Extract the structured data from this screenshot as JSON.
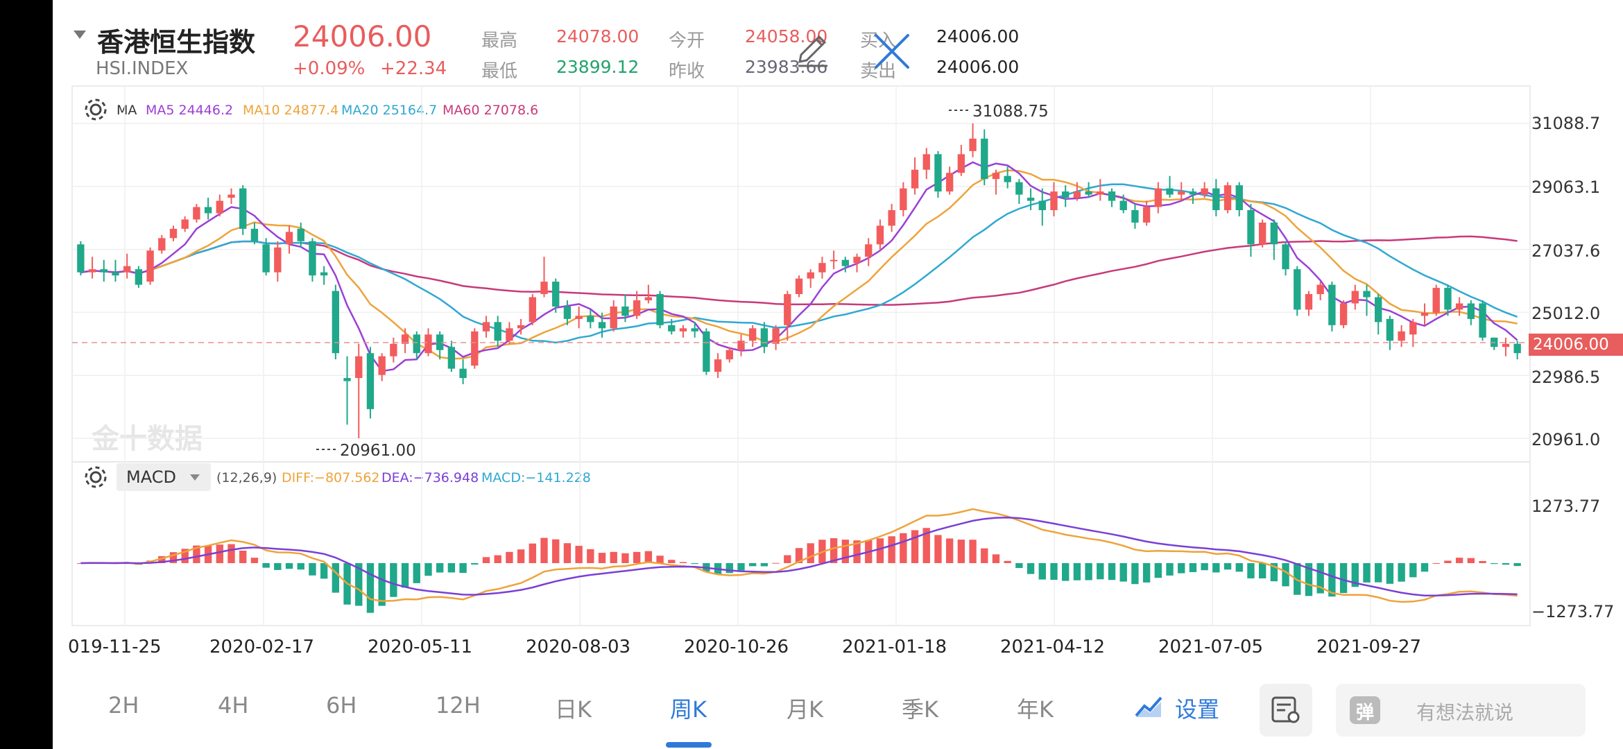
{
  "header": {
    "name": "香港恒生指数",
    "code": "HSI.INDEX",
    "price": "24006.00",
    "change_pct": "+0.09%",
    "change_abs": "+22.34",
    "quotes": [
      {
        "label": "最高",
        "value": "24078.00",
        "color": "#e85d5d"
      },
      {
        "label": "最低",
        "value": "23899.12",
        "color": "#23a26d"
      },
      {
        "label": "今开",
        "value": "24058.00",
        "color": "#e85d5d"
      },
      {
        "label": "昨收",
        "value": "23983.66",
        "color": "#556680"
      },
      {
        "label": "买入",
        "value": "24006.00",
        "color": "#222222"
      },
      {
        "label": "卖出",
        "value": "24006.00",
        "color": "#222222"
      }
    ],
    "edit_icon": "pencil-icon",
    "close_icon": "close-icon"
  },
  "main_indicator": {
    "name": "MA",
    "ma5": "MA5 24446.2",
    "ma10": "MA10 24877.4",
    "ma20": "MA20 25164.7",
    "ma60": "MA60 27078.6",
    "colors": {
      "ma5": "#9b3fd6",
      "ma10": "#eea33a",
      "ma20": "#2fa8d2",
      "ma60": "#c8397a"
    }
  },
  "sub_indicator": {
    "name": "MACD",
    "params": "(12,26,9)",
    "diff": "DIFF:−807.562",
    "dea": "DEA:−736.948",
    "macd": "MACD:−141.228",
    "colors": {
      "diff": "#eea33a",
      "dea": "#7a3fd6",
      "macd": "#2fa8d2"
    }
  },
  "watermark": "金十数据",
  "y_axis": [
    "31088.7",
    "29063.1",
    "27037.6",
    "25012.0",
    "22986.5",
    "20961.0"
  ],
  "price_tag": "24006.00",
  "macd_axis": [
    "1273.77",
    "−1273.77"
  ],
  "annotations": {
    "high": "31088.75",
    "low": "20961.00"
  },
  "x_axis": [
    "019-11-25",
    "2020-02-17",
    "2020-05-11",
    "2020-08-03",
    "2020-10-26",
    "2021-01-18",
    "2021-04-12",
    "2021-07-05",
    "2021-09-27"
  ],
  "tabs": [
    "2H",
    "4H",
    "6H",
    "12H",
    "日K",
    "周K",
    "月K",
    "季K",
    "年K"
  ],
  "active_tab": "周K",
  "settings_label": "设置",
  "search_placeholder": "有想法就说",
  "chart_data": {
    "type": "candlestick",
    "period": "weekly",
    "x_ticks": [
      "019-11-25",
      "2020-02-17",
      "2020-05-11",
      "2020-08-03",
      "2020-10-26",
      "2021-01-18",
      "2021-04-12",
      "2021-07-05",
      "2021-09-27"
    ],
    "ylim": [
      20961.0,
      31088.7
    ],
    "y_ticks": [
      31088.7,
      29063.1,
      27037.6,
      25012.0,
      22986.5,
      20961.0
    ],
    "candles": [
      [
        27200,
        26300,
        27300,
        26200
      ],
      [
        26300,
        26400,
        26800,
        26100
      ],
      [
        26400,
        26300,
        26700,
        26000
      ],
      [
        26300,
        26200,
        26700,
        26000
      ],
      [
        26300,
        26500,
        26900,
        26100
      ],
      [
        26400,
        25900,
        26500,
        25800
      ],
      [
        26000,
        27000,
        27100,
        25900
      ],
      [
        27000,
        27400,
        27500,
        26900
      ],
      [
        27400,
        27700,
        27800,
        27300
      ],
      [
        27700,
        28000,
        28100,
        27600
      ],
      [
        28000,
        28400,
        28500,
        27900
      ],
      [
        28400,
        28200,
        28700,
        28000
      ],
      [
        28200,
        28600,
        28800,
        28100
      ],
      [
        28700,
        28800,
        29000,
        28500
      ],
      [
        29000,
        27700,
        29100,
        27500
      ],
      [
        27700,
        27300,
        27900,
        27200
      ],
      [
        27200,
        26300,
        27400,
        26200
      ],
      [
        26300,
        27100,
        27300,
        26000
      ],
      [
        27200,
        27600,
        27800,
        26900
      ],
      [
        27700,
        27300,
        27900,
        27100
      ],
      [
        27300,
        26200,
        27400,
        26000
      ],
      [
        26300,
        26200,
        26500,
        25900
      ],
      [
        25700,
        23700,
        25900,
        23500
      ],
      [
        22900,
        22800,
        23600,
        21400
      ],
      [
        22900,
        23600,
        24000,
        20961
      ],
      [
        23700,
        21900,
        23900,
        21600
      ],
      [
        23000,
        23600,
        23700,
        22800
      ],
      [
        23600,
        24000,
        24200,
        23400
      ],
      [
        24000,
        24300,
        24500,
        23700
      ],
      [
        24300,
        23700,
        24400,
        23500
      ],
      [
        23700,
        24300,
        24500,
        23600
      ],
      [
        24300,
        23800,
        24400,
        23500
      ],
      [
        23900,
        23200,
        24100,
        23100
      ],
      [
        23200,
        22900,
        23500,
        22700
      ],
      [
        23300,
        24400,
        24500,
        23200
      ],
      [
        24400,
        24700,
        24900,
        24200
      ],
      [
        24700,
        24100,
        24900,
        23900
      ],
      [
        24100,
        24500,
        24700,
        24000
      ],
      [
        24500,
        24600,
        24800,
        24300
      ],
      [
        24700,
        25500,
        25600,
        24600
      ],
      [
        25600,
        26000,
        26800,
        25500
      ],
      [
        26000,
        25200,
        26100,
        25000
      ],
      [
        25200,
        24800,
        25400,
        24600
      ],
      [
        24800,
        24900,
        25200,
        24500
      ],
      [
        24900,
        24700,
        25100,
        24500
      ],
      [
        24700,
        24500,
        25000,
        24200
      ],
      [
        24500,
        25200,
        25400,
        24400
      ],
      [
        25200,
        24900,
        25600,
        24700
      ],
      [
        24900,
        25400,
        25700,
        24800
      ],
      [
        25400,
        25500,
        25900,
        25300
      ],
      [
        25600,
        24600,
        25700,
        24500
      ],
      [
        24600,
        24400,
        24800,
        24300
      ],
      [
        24400,
        24500,
        24600,
        24200
      ],
      [
        24500,
        24400,
        24700,
        24200
      ],
      [
        24400,
        23100,
        24500,
        23000
      ],
      [
        23100,
        23500,
        23700,
        22900
      ],
      [
        23500,
        23800,
        23900,
        23400
      ],
      [
        23800,
        24100,
        24300,
        23600
      ],
      [
        24100,
        24500,
        24600,
        23900
      ],
      [
        24500,
        23900,
        24700,
        23700
      ],
      [
        24000,
        24500,
        24600,
        23800
      ],
      [
        24600,
        25600,
        25700,
        24100
      ],
      [
        25600,
        26100,
        26200,
        25500
      ],
      [
        26100,
        26300,
        26400,
        25800
      ],
      [
        26300,
        26600,
        26800,
        26100
      ],
      [
        26700,
        26700,
        27000,
        26400
      ],
      [
        26700,
        26500,
        26800,
        26300
      ],
      [
        26600,
        26800,
        26900,
        26300
      ],
      [
        26800,
        27200,
        27400,
        26500
      ],
      [
        27200,
        27800,
        28000,
        27000
      ],
      [
        27800,
        28300,
        28500,
        27600
      ],
      [
        28300,
        29000,
        29200,
        28100
      ],
      [
        29000,
        29600,
        30000,
        28800
      ],
      [
        29600,
        30100,
        30300,
        29300
      ],
      [
        30100,
        28900,
        30200,
        28700
      ],
      [
        28900,
        29500,
        29700,
        28800
      ],
      [
        29500,
        30100,
        30400,
        29400
      ],
      [
        30200,
        30600,
        31088.75,
        30000
      ],
      [
        30600,
        29300,
        30900,
        29100
      ],
      [
        29300,
        29500,
        29600,
        28800
      ],
      [
        29400,
        29200,
        29700,
        29000
      ],
      [
        29200,
        28800,
        29300,
        28500
      ],
      [
        28700,
        28600,
        29000,
        28300
      ],
      [
        28600,
        28300,
        29000,
        27800
      ],
      [
        28300,
        28900,
        29200,
        28100
      ],
      [
        28900,
        28700,
        29100,
        28400
      ],
      [
        28700,
        28900,
        29200,
        28600
      ],
      [
        28900,
        28800,
        29200,
        28700
      ],
      [
        28800,
        28900,
        29300,
        28600
      ],
      [
        28900,
        28600,
        29000,
        28400
      ],
      [
        28600,
        28300,
        28800,
        28200
      ],
      [
        28300,
        27900,
        28500,
        27700
      ],
      [
        27900,
        28400,
        28600,
        27800
      ],
      [
        28400,
        29000,
        29200,
        28200
      ],
      [
        29000,
        28800,
        29400,
        28700
      ],
      [
        28800,
        28900,
        29200,
        28600
      ],
      [
        28900,
        28800,
        29000,
        28500
      ],
      [
        28800,
        29000,
        29200,
        28700
      ],
      [
        29000,
        28300,
        29300,
        28100
      ],
      [
        28300,
        29100,
        29200,
        28200
      ],
      [
        29100,
        28300,
        29200,
        28100
      ],
      [
        28300,
        27200,
        28500,
        26800
      ],
      [
        27200,
        27900,
        28000,
        27100
      ],
      [
        27900,
        27200,
        28000,
        26700
      ],
      [
        27200,
        26400,
        27300,
        26200
      ],
      [
        26400,
        25100,
        26500,
        24900
      ],
      [
        25100,
        25600,
        25700,
        24900
      ],
      [
        25600,
        25900,
        26000,
        25400
      ],
      [
        25900,
        24600,
        26000,
        24400
      ],
      [
        24600,
        25300,
        25400,
        24500
      ],
      [
        25300,
        25700,
        25900,
        25100
      ],
      [
        25700,
        25500,
        25900,
        24900
      ],
      [
        25500,
        24700,
        25600,
        24300
      ],
      [
        24800,
        24100,
        24900,
        23800
      ],
      [
        24100,
        24400,
        24600,
        23900
      ],
      [
        24300,
        24700,
        24800,
        23900
      ],
      [
        24900,
        25000,
        25300,
        24600
      ],
      [
        25000,
        25800,
        25900,
        24900
      ],
      [
        25800,
        25100,
        25900,
        24900
      ],
      [
        25100,
        25300,
        25500,
        24900
      ],
      [
        25300,
        24800,
        25400,
        24600
      ],
      [
        25300,
        24200,
        25400,
        24100
      ],
      [
        24200,
        23900,
        24200,
        23800
      ],
      [
        23900,
        24000,
        24200,
        23600
      ],
      [
        24000,
        23700,
        24100,
        23500
      ]
    ]
  }
}
